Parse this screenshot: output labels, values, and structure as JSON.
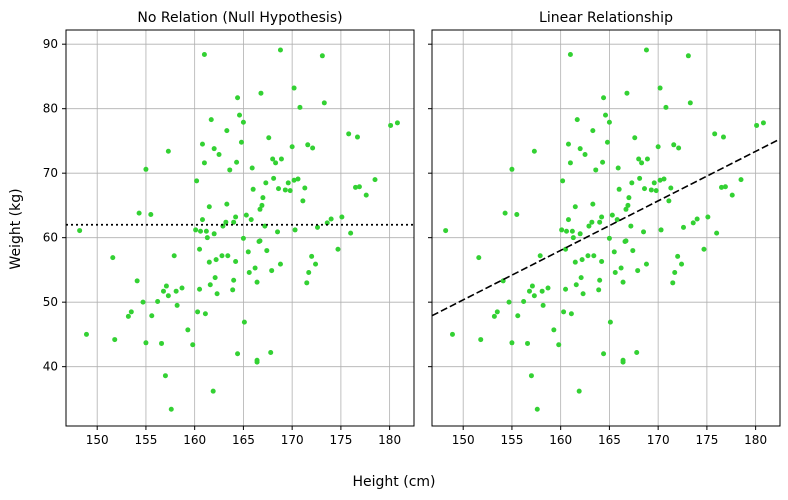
{
  "chart_data": {
    "type": "scatter",
    "xlabel": "Height (cm)",
    "ylabel": "Weight (kg)",
    "xlim": [
      146.8,
      182.5
    ],
    "ylim": [
      30.8,
      92.2
    ],
    "xticks": [
      150,
      155,
      160,
      165,
      170,
      175,
      180
    ],
    "yticks": [
      40,
      50,
      60,
      70,
      80,
      90
    ],
    "grid": true,
    "sharey": true,
    "marker_color": "#33d133",
    "panels": [
      {
        "title": "No Relation (Null Hypothesis)",
        "fit": {
          "kind": "horizontal",
          "style": "dotted",
          "y": 62.0
        }
      },
      {
        "title": "Linear Relationship",
        "fit": {
          "kind": "line",
          "style": "dashed",
          "x": [
            146.8,
            182.5
          ],
          "y": [
            47.9,
            75.3
          ]
        }
      }
    ],
    "points": [
      [
        148.2,
        61.1
      ],
      [
        148.9,
        45.0
      ],
      [
        151.6,
        56.9
      ],
      [
        151.8,
        44.2
      ],
      [
        153.2,
        47.8
      ],
      [
        153.5,
        48.5
      ],
      [
        154.1,
        53.3
      ],
      [
        154.3,
        63.8
      ],
      [
        154.7,
        50.0
      ],
      [
        155.0,
        43.7
      ],
      [
        155.0,
        70.6
      ],
      [
        155.5,
        63.6
      ],
      [
        155.6,
        47.9
      ],
      [
        156.2,
        50.1
      ],
      [
        156.6,
        43.6
      ],
      [
        156.8,
        51.7
      ],
      [
        157.0,
        38.6
      ],
      [
        157.1,
        52.5
      ],
      [
        157.3,
        73.4
      ],
      [
        157.3,
        51.0
      ],
      [
        157.6,
        33.4
      ],
      [
        157.9,
        57.2
      ],
      [
        158.1,
        51.7
      ],
      [
        158.2,
        49.5
      ],
      [
        158.7,
        52.2
      ],
      [
        159.3,
        45.7
      ],
      [
        159.8,
        43.4
      ],
      [
        160.1,
        61.2
      ],
      [
        160.2,
        68.8
      ],
      [
        160.3,
        48.5
      ],
      [
        160.5,
        58.2
      ],
      [
        160.5,
        52.0
      ],
      [
        160.6,
        61.0
      ],
      [
        160.8,
        74.5
      ],
      [
        160.8,
        62.8
      ],
      [
        161.0,
        88.4
      ],
      [
        161.0,
        71.6
      ],
      [
        161.1,
        48.2
      ],
      [
        161.2,
        61.0
      ],
      [
        161.3,
        60.0
      ],
      [
        161.5,
        64.8
      ],
      [
        161.5,
        56.2
      ],
      [
        161.6,
        52.7
      ],
      [
        161.7,
        78.3
      ],
      [
        161.9,
        36.2
      ],
      [
        162.0,
        73.8
      ],
      [
        162.0,
        60.6
      ],
      [
        162.1,
        53.8
      ],
      [
        162.2,
        56.6
      ],
      [
        162.3,
        51.3
      ],
      [
        162.5,
        72.9
      ],
      [
        162.8,
        57.2
      ],
      [
        162.9,
        61.8
      ],
      [
        163.2,
        62.4
      ],
      [
        163.3,
        76.6
      ],
      [
        163.3,
        65.2
      ],
      [
        163.4,
        57.2
      ],
      [
        163.6,
        70.5
      ],
      [
        163.9,
        51.9
      ],
      [
        164.0,
        53.4
      ],
      [
        164.0,
        62.4
      ],
      [
        164.2,
        63.2
      ],
      [
        164.2,
        56.3
      ],
      [
        164.3,
        71.7
      ],
      [
        164.4,
        42.0
      ],
      [
        164.4,
        81.7
      ],
      [
        164.6,
        79.0
      ],
      [
        164.8,
        74.8
      ],
      [
        165.0,
        77.9
      ],
      [
        165.0,
        59.9
      ],
      [
        165.1,
        46.9
      ],
      [
        165.3,
        63.5
      ],
      [
        165.5,
        57.8
      ],
      [
        165.6,
        54.6
      ],
      [
        165.8,
        62.8
      ],
      [
        165.9,
        70.8
      ],
      [
        166.0,
        67.5
      ],
      [
        166.2,
        55.3
      ],
      [
        166.4,
        41.0
      ],
      [
        166.4,
        40.7
      ],
      [
        166.4,
        53.1
      ],
      [
        166.6,
        59.4
      ],
      [
        166.7,
        64.4
      ],
      [
        166.7,
        59.5
      ],
      [
        166.8,
        82.4
      ],
      [
        166.9,
        65.0
      ],
      [
        167.0,
        66.2
      ],
      [
        167.2,
        61.8
      ],
      [
        167.3,
        68.5
      ],
      [
        167.4,
        58.0
      ],
      [
        167.6,
        75.5
      ],
      [
        167.8,
        42.2
      ],
      [
        167.9,
        54.9
      ],
      [
        168.0,
        72.2
      ],
      [
        168.1,
        69.2
      ],
      [
        168.3,
        71.6
      ],
      [
        168.5,
        60.9
      ],
      [
        168.6,
        67.6
      ],
      [
        168.8,
        55.9
      ],
      [
        168.8,
        89.1
      ],
      [
        168.9,
        72.2
      ],
      [
        169.3,
        67.4
      ],
      [
        169.6,
        68.5
      ],
      [
        169.8,
        67.3
      ],
      [
        170.0,
        74.1
      ],
      [
        170.2,
        68.9
      ],
      [
        170.2,
        83.2
      ],
      [
        170.3,
        61.2
      ],
      [
        170.6,
        69.1
      ],
      [
        170.8,
        80.2
      ],
      [
        171.1,
        65.7
      ],
      [
        171.3,
        67.7
      ],
      [
        171.5,
        53.0
      ],
      [
        171.6,
        74.4
      ],
      [
        171.7,
        54.6
      ],
      [
        172.0,
        57.1
      ],
      [
        172.1,
        73.9
      ],
      [
        172.4,
        55.9
      ],
      [
        172.6,
        61.6
      ],
      [
        173.1,
        88.2
      ],
      [
        173.3,
        80.9
      ],
      [
        173.6,
        62.3
      ],
      [
        174.0,
        62.9
      ],
      [
        174.7,
        58.2
      ],
      [
        175.1,
        63.2
      ],
      [
        175.8,
        76.1
      ],
      [
        176.0,
        60.7
      ],
      [
        176.5,
        67.8
      ],
      [
        176.7,
        75.6
      ],
      [
        176.9,
        67.9
      ],
      [
        177.6,
        66.6
      ],
      [
        178.5,
        69.0
      ],
      [
        180.1,
        77.4
      ],
      [
        180.8,
        77.8
      ]
    ]
  }
}
